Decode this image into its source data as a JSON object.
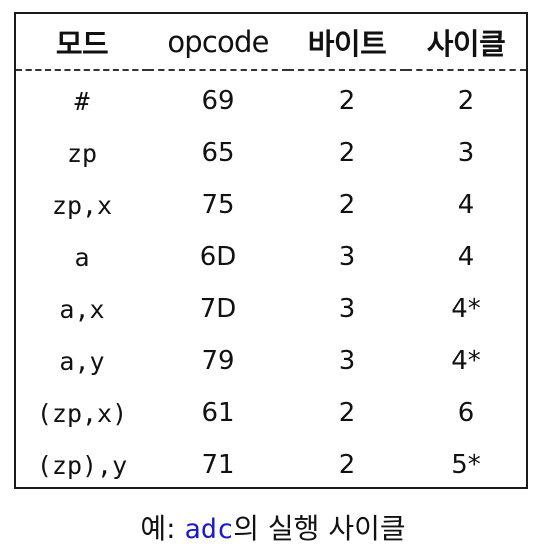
{
  "table": {
    "headers": [
      "모드",
      "opcode",
      "바이트",
      "사이클"
    ],
    "rows": [
      {
        "mode": "#",
        "opcode": "69",
        "bytes": "2",
        "cycles": "2"
      },
      {
        "mode": "zp",
        "opcode": "65",
        "bytes": "2",
        "cycles": "3"
      },
      {
        "mode": "zp,x",
        "opcode": "75",
        "bytes": "2",
        "cycles": "4"
      },
      {
        "mode": "a",
        "opcode": "6D",
        "bytes": "3",
        "cycles": "4"
      },
      {
        "mode": "a,x",
        "opcode": "7D",
        "bytes": "3",
        "cycles": "4*"
      },
      {
        "mode": "a,y",
        "opcode": "79",
        "bytes": "3",
        "cycles": "4*"
      },
      {
        "mode": "(zp,x)",
        "opcode": "61",
        "bytes": "2",
        "cycles": "6"
      },
      {
        "mode": "(zp),y",
        "opcode": "71",
        "bytes": "2",
        "cycles": "5*"
      }
    ]
  },
  "caption": {
    "prefix": "예: ",
    "code": "adc",
    "suffix": "의 실행 사이클"
  },
  "colors": {
    "code_accent": "#1a1ac8",
    "border": "#1a1a1a"
  }
}
